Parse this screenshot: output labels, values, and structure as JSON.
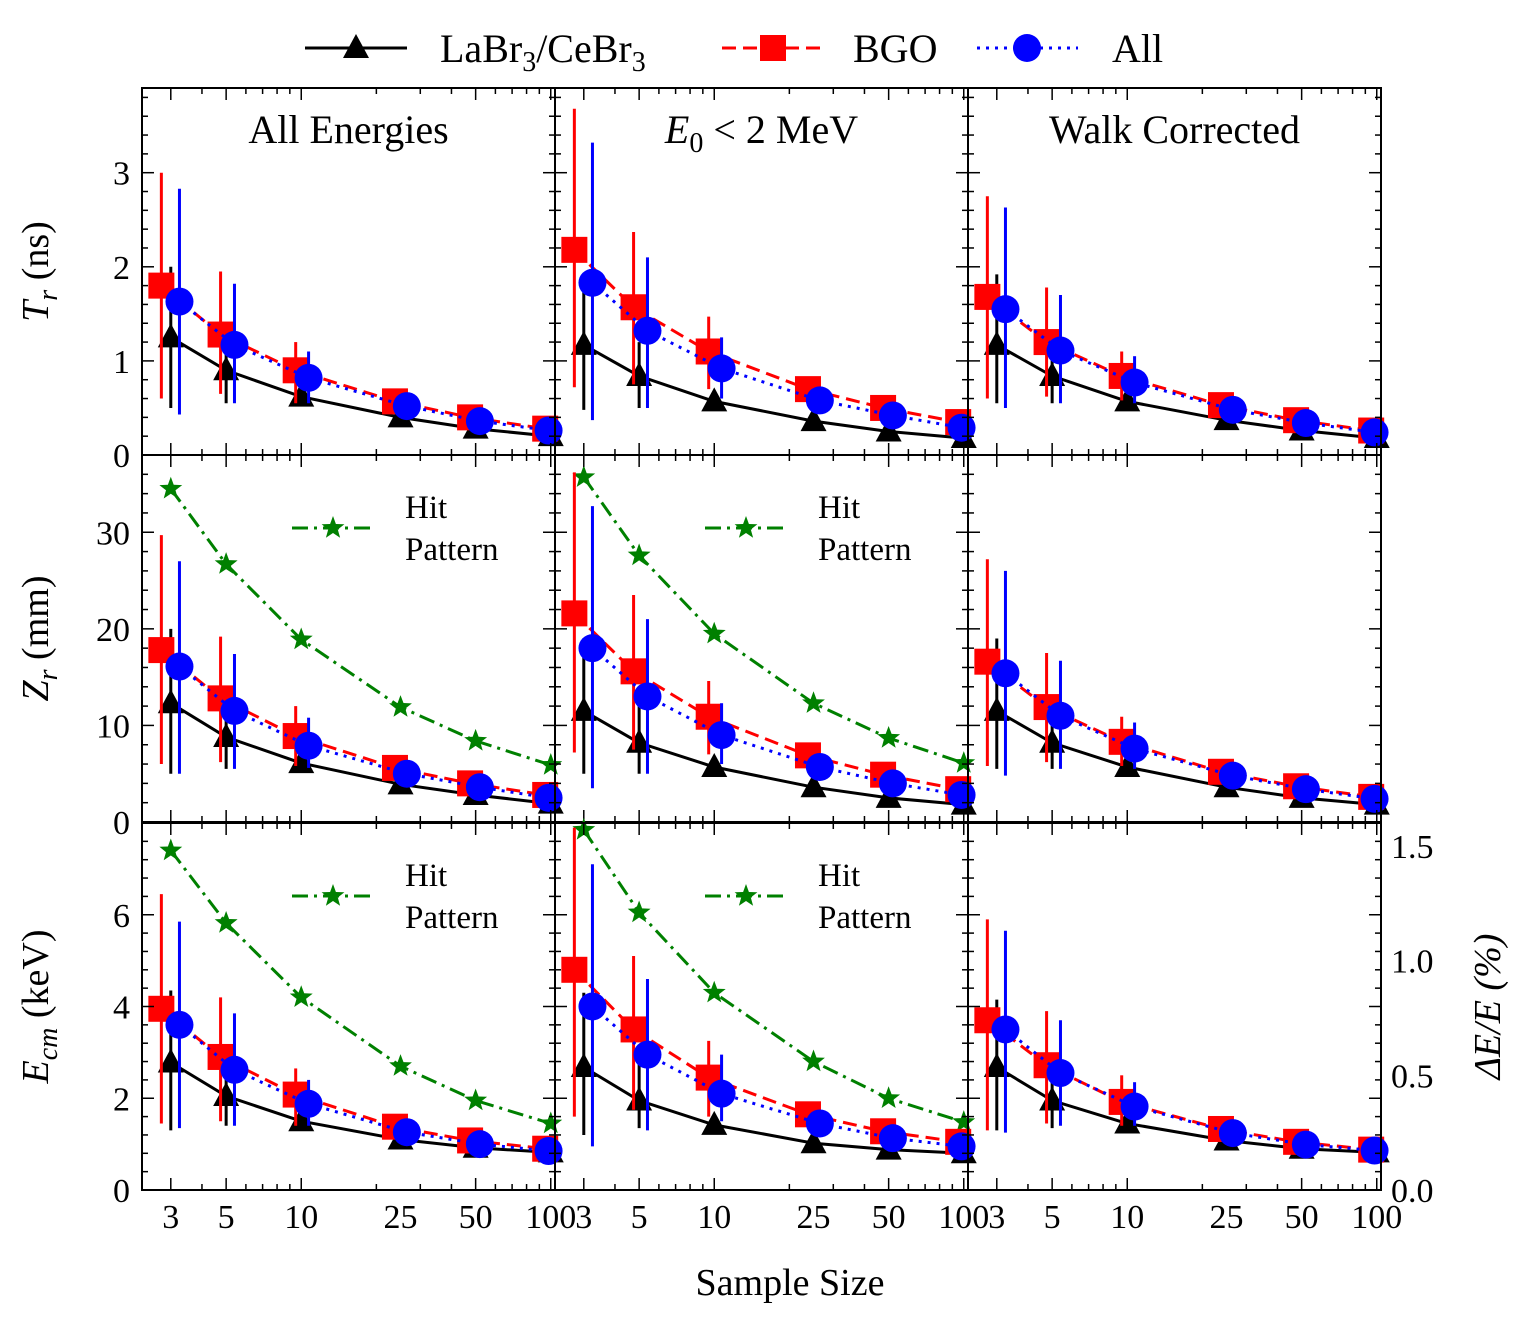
{
  "chart_data": {
    "type": "line",
    "x_scale": "log",
    "x_ticks": [
      3,
      5,
      10,
      25,
      50,
      100
    ],
    "x_tick_labels": [
      "3",
      "5",
      "10",
      "25",
      "50",
      "100"
    ],
    "xlim": [
      2.3,
      104
    ],
    "xlabel": "Sample Size",
    "legend": [
      {
        "key": "labr",
        "text": "LaBr",
        "sub": "3",
        "text2": "/CeBr",
        "sub2": "3",
        "color": "#000000",
        "style": "solid",
        "marker": "triangle"
      },
      {
        "key": "bgo",
        "text": "BGO",
        "color": "#ff0000",
        "style": "dashed",
        "marker": "square"
      },
      {
        "key": "all",
        "text": "All",
        "color": "#0000ff",
        "style": "dotted",
        "marker": "circle"
      }
    ],
    "hit_pattern": {
      "line1": "Hit",
      "line2": "Pattern",
      "color": "#008000"
    },
    "columns": [
      {
        "title": "All Energies"
      },
      {
        "title": "E",
        "title_sub": "0",
        "title_rest": " < 2 MeV"
      },
      {
        "title": "Walk Corrected"
      }
    ],
    "rows": [
      {
        "ylabel": "T",
        "ylabel_sub": "r",
        "ylabel_rest": " (ns)",
        "ylim": [
          0,
          3.9
        ],
        "yticks": [
          0,
          1,
          2,
          3
        ],
        "ytick_labels": [
          "0",
          "1",
          "2",
          "3"
        ],
        "minor_step": 0.2
      },
      {
        "ylabel": "Z",
        "ylabel_sub": "r",
        "ylabel_rest": " (mm)",
        "ylim": [
          0,
          38
        ],
        "yticks": [
          0,
          10,
          20,
          30
        ],
        "ytick_labels": [
          "0",
          "10",
          "20",
          "30"
        ],
        "minor_step": 2
      },
      {
        "ylabel": "E",
        "ylabel_sub": "cm",
        "ylabel_rest": " (keV)",
        "ylim": [
          0,
          8
        ],
        "yticks": [
          0,
          2,
          4,
          6
        ],
        "ytick_labels": [
          "0",
          "2",
          "4",
          "6"
        ],
        "minor_step": 0.4,
        "right_axis": {
          "label": "ΔE/E (%)",
          "ylim": [
            0,
            1.6
          ],
          "yticks": [
            0,
            0.5,
            1.0,
            1.5
          ],
          "ytick_labels": [
            "0.0",
            "0.5",
            "1.0",
            "1.5"
          ]
        }
      }
    ],
    "panels": [
      {
        "row": 0,
        "col": 0,
        "labr": {
          "x": [
            3,
            5,
            10,
            25,
            50,
            100
          ],
          "y": [
            1.25,
            0.9,
            0.62,
            0.4,
            0.28,
            0.2
          ],
          "err": [
            [
              0.5,
              2.0
            ],
            [
              0.55,
              1.25
            ]
          ]
        },
        "bgo": {
          "x": [
            2.75,
            4.75,
            9.5,
            23.75,
            47.5,
            95
          ],
          "y": [
            1.8,
            1.28,
            0.9,
            0.57,
            0.4,
            0.28
          ],
          "err": [
            [
              0.6,
              3.0
            ],
            [
              0.65,
              1.95
            ],
            [
              0.55,
              1.2
            ]
          ]
        },
        "all": {
          "x": [
            3.25,
            5.4,
            10.7,
            26.5,
            52,
            98
          ],
          "y": [
            1.63,
            1.17,
            0.82,
            0.52,
            0.36,
            0.26
          ],
          "err": [
            [
              0.43,
              2.83
            ],
            [
              0.55,
              1.82
            ],
            [
              0.55,
              1.1
            ]
          ]
        }
      },
      {
        "row": 0,
        "col": 1,
        "labr": {
          "x": [
            3,
            5,
            10,
            25,
            50,
            100
          ],
          "y": [
            1.17,
            0.84,
            0.57,
            0.36,
            0.25,
            0.18
          ],
          "err": [
            [
              0.48,
              1.9
            ],
            [
              0.5,
              1.2
            ]
          ]
        },
        "bgo": {
          "x": [
            2.75,
            4.75,
            9.5,
            23.75,
            47.5,
            95
          ],
          "y": [
            2.18,
            1.57,
            1.1,
            0.7,
            0.5,
            0.35
          ],
          "err": [
            [
              0.72,
              3.68
            ],
            [
              0.75,
              2.37
            ],
            [
              0.7,
              1.47
            ]
          ]
        },
        "all": {
          "x": [
            3.25,
            5.4,
            10.7,
            26.5,
            52,
            98
          ],
          "y": [
            1.83,
            1.32,
            0.92,
            0.58,
            0.42,
            0.29
          ],
          "err": [
            [
              0.37,
              3.32
            ],
            [
              0.5,
              2.1
            ],
            [
              0.6,
              1.25
            ]
          ]
        }
      },
      {
        "row": 0,
        "col": 2,
        "labr": {
          "x": [
            3,
            5,
            10,
            25,
            50,
            100
          ],
          "y": [
            1.17,
            0.84,
            0.57,
            0.37,
            0.26,
            0.18
          ],
          "err": [
            [
              0.55,
              1.92
            ],
            [
              0.55,
              1.2
            ]
          ]
        },
        "bgo": {
          "x": [
            2.75,
            4.75,
            9.5,
            23.75,
            47.5,
            95
          ],
          "y": [
            1.68,
            1.2,
            0.84,
            0.53,
            0.37,
            0.26
          ],
          "err": [
            [
              0.6,
              2.75
            ],
            [
              0.62,
              1.78
            ],
            [
              0.58,
              1.1
            ]
          ]
        },
        "all": {
          "x": [
            3.25,
            5.4,
            10.7,
            26.5,
            52,
            98
          ],
          "y": [
            1.55,
            1.11,
            0.77,
            0.48,
            0.34,
            0.24
          ],
          "err": [
            [
              0.5,
              2.63
            ],
            [
              0.55,
              1.7
            ],
            [
              0.55,
              1.05
            ]
          ]
        }
      },
      {
        "row": 1,
        "col": 0,
        "labr": {
          "x": [
            3,
            5,
            10,
            25,
            50,
            100
          ],
          "y": [
            12.3,
            8.8,
            6.1,
            3.9,
            2.8,
            1.9
          ],
          "err": [
            [
              5.0,
              20.0
            ],
            [
              5.5,
              12.5
            ]
          ]
        },
        "bgo": {
          "x": [
            2.75,
            4.75,
            9.5,
            23.75,
            47.5,
            95
          ],
          "y": [
            17.8,
            12.8,
            8.9,
            5.6,
            4.0,
            2.8
          ],
          "err": [
            [
              6.0,
              29.7
            ],
            [
              6.2,
              19.2
            ],
            [
              5.8,
              12.0
            ]
          ]
        },
        "all": {
          "x": [
            3.25,
            5.4,
            10.7,
            26.5,
            52,
            98
          ],
          "y": [
            16.1,
            11.5,
            7.9,
            5.0,
            3.6,
            2.5
          ],
          "err": [
            [
              5.0,
              27.0
            ],
            [
              5.5,
              17.4
            ],
            [
              5.6,
              10.8
            ]
          ]
        },
        "hit": {
          "x": [
            3,
            5,
            10,
            25,
            50,
            100
          ],
          "y": [
            34.5,
            26.7,
            18.9,
            11.9,
            8.4,
            5.9
          ]
        }
      },
      {
        "row": 1,
        "col": 1,
        "labr": {
          "x": [
            3,
            5,
            10,
            25,
            50,
            100
          ],
          "y": [
            11.5,
            8.2,
            5.7,
            3.6,
            2.5,
            1.8
          ],
          "err": [
            [
              5.0,
              19.0
            ],
            [
              5.0,
              12.0
            ]
          ]
        },
        "bgo": {
          "x": [
            2.75,
            4.75,
            9.5,
            23.75,
            47.5,
            95
          ],
          "y": [
            21.6,
            15.6,
            10.9,
            6.9,
            4.9,
            3.4
          ],
          "err": [
            [
              7.2,
              36.2
            ],
            [
              7.5,
              23.5
            ],
            [
              7.0,
              14.6
            ]
          ]
        },
        "all": {
          "x": [
            3.25,
            5.4,
            10.7,
            26.5,
            52,
            98
          ],
          "y": [
            18.0,
            13.0,
            9.0,
            5.7,
            4.0,
            2.8
          ],
          "err": [
            [
              3.5,
              32.7
            ],
            [
              5.0,
              21.0
            ],
            [
              6.0,
              12.3
            ]
          ]
        },
        "hit": {
          "x": [
            3,
            5,
            10,
            25,
            50,
            100
          ],
          "y": [
            35.7,
            27.6,
            19.5,
            12.3,
            8.7,
            6.1
          ]
        }
      },
      {
        "row": 1,
        "col": 2,
        "labr": {
          "x": [
            3,
            5,
            10,
            25,
            50,
            100
          ],
          "y": [
            11.5,
            8.2,
            5.7,
            3.6,
            2.5,
            1.8
          ],
          "err": [
            [
              5.5,
              19.0
            ],
            [
              5.5,
              12.0
            ]
          ]
        },
        "bgo": {
          "x": [
            2.75,
            4.75,
            9.5,
            23.75,
            47.5,
            95
          ],
          "y": [
            16.6,
            11.9,
            8.3,
            5.2,
            3.7,
            2.6
          ],
          "err": [
            [
              5.8,
              27.2
            ],
            [
              6.2,
              17.5
            ],
            [
              5.8,
              10.9
            ]
          ]
        },
        "all": {
          "x": [
            3.25,
            5.4,
            10.7,
            26.5,
            52,
            98
          ],
          "y": [
            15.4,
            11.0,
            7.6,
            4.8,
            3.4,
            2.4
          ],
          "err": [
            [
              4.8,
              26.0
            ],
            [
              5.5,
              16.7
            ],
            [
              5.5,
              10.3
            ]
          ]
        }
      },
      {
        "row": 2,
        "col": 0,
        "labr": {
          "x": [
            3,
            5,
            10,
            25,
            50,
            100
          ],
          "y": [
            2.78,
            2.05,
            1.5,
            1.1,
            0.92,
            0.82
          ],
          "err": [
            [
              1.3,
              4.35
            ],
            [
              1.4,
              2.8
            ]
          ]
        },
        "bgo": {
          "x": [
            2.75,
            4.75,
            9.5,
            23.75,
            47.5,
            95
          ],
          "y": [
            3.95,
            2.9,
            2.08,
            1.38,
            1.08,
            0.9
          ],
          "err": [
            [
              1.45,
              6.45
            ],
            [
              1.5,
              4.2
            ],
            [
              1.4,
              2.65
            ]
          ]
        },
        "all": {
          "x": [
            3.25,
            5.4,
            10.7,
            26.5,
            52,
            98
          ],
          "y": [
            3.6,
            2.62,
            1.88,
            1.26,
            1.0,
            0.85
          ],
          "err": [
            [
              1.35,
              5.85
            ],
            [
              1.4,
              3.85
            ],
            [
              1.4,
              2.4
            ]
          ]
        },
        "hit": {
          "x": [
            3,
            5,
            10,
            25,
            50,
            100
          ],
          "y": [
            7.4,
            5.82,
            4.2,
            2.7,
            1.95,
            1.45
          ]
        }
      },
      {
        "row": 2,
        "col": 1,
        "labr": {
          "x": [
            3,
            5,
            10,
            25,
            50,
            100
          ],
          "y": [
            2.68,
            1.95,
            1.42,
            1.02,
            0.88,
            0.8
          ],
          "err": [
            [
              1.2,
              4.3
            ],
            [
              1.35,
              2.75
            ]
          ]
        },
        "bgo": {
          "x": [
            2.75,
            4.75,
            9.5,
            23.75,
            47.5,
            95
          ],
          "y": [
            4.8,
            3.5,
            2.45,
            1.65,
            1.28,
            1.05
          ],
          "err": [
            [
              1.6,
              7.9
            ],
            [
              1.75,
              5.1
            ],
            [
              1.6,
              3.25
            ]
          ]
        },
        "all": {
          "x": [
            3.25,
            5.4,
            10.7,
            26.5,
            52,
            98
          ],
          "y": [
            4.0,
            2.95,
            2.1,
            1.45,
            1.13,
            0.95
          ],
          "err": [
            [
              0.95,
              7.1
            ],
            [
              1.3,
              4.6
            ],
            [
              1.5,
              2.95
            ]
          ]
        },
        "hit": {
          "x": [
            3,
            5,
            10,
            25,
            50,
            100
          ],
          "y": [
            7.85,
            6.05,
            4.3,
            2.8,
            2.0,
            1.48
          ]
        }
      },
      {
        "row": 2,
        "col": 2,
        "labr": {
          "x": [
            3,
            5,
            10,
            25,
            50,
            100
          ],
          "y": [
            2.68,
            1.95,
            1.45,
            1.08,
            0.9,
            0.82
          ],
          "err": [
            [
              1.3,
              4.15
            ],
            [
              1.35,
              2.75
            ]
          ]
        },
        "bgo": {
          "x": [
            2.75,
            4.75,
            9.5,
            23.75,
            47.5,
            95
          ],
          "y": [
            3.7,
            2.72,
            1.92,
            1.33,
            1.05,
            0.88
          ],
          "err": [
            [
              1.3,
              5.9
            ],
            [
              1.45,
              3.9
            ],
            [
              1.4,
              2.5
            ]
          ]
        },
        "all": {
          "x": [
            3.25,
            5.4,
            10.7,
            26.5,
            52,
            98
          ],
          "y": [
            3.5,
            2.55,
            1.82,
            1.24,
            0.99,
            0.86
          ],
          "err": [
            [
              1.25,
              5.65
            ],
            [
              1.4,
              3.7
            ],
            [
              1.4,
              2.35
            ]
          ]
        }
      }
    ]
  }
}
